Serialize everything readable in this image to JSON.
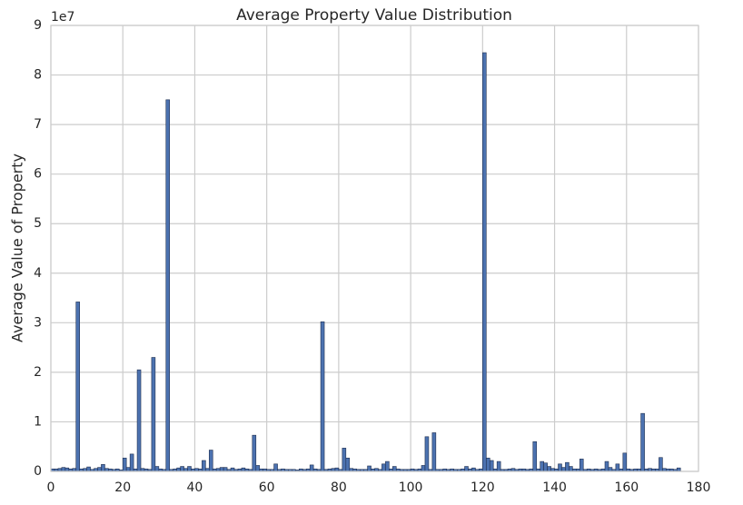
{
  "chart_data": {
    "type": "bar",
    "title": "Average Property Value Distribution",
    "ylabel": "Average Value of Property",
    "offset_label": "1e7",
    "color": "#4c72b0",
    "edgecolor": "#1f2f4f",
    "grid": true,
    "x": [
      0,
      1,
      2,
      3,
      4,
      5,
      6,
      7,
      8,
      9,
      10,
      11,
      12,
      13,
      14,
      15,
      16,
      17,
      18,
      19,
      20,
      21,
      22,
      23,
      24,
      25,
      26,
      27,
      28,
      29,
      30,
      31,
      32,
      33,
      34,
      35,
      36,
      37,
      38,
      39,
      40,
      41,
      42,
      43,
      44,
      45,
      46,
      47,
      48,
      49,
      50,
      51,
      52,
      53,
      54,
      55,
      56,
      57,
      58,
      59,
      60,
      61,
      62,
      63,
      64,
      65,
      66,
      67,
      68,
      69,
      70,
      71,
      72,
      73,
      74,
      75,
      76,
      77,
      78,
      79,
      80,
      81,
      82,
      83,
      84,
      85,
      86,
      87,
      88,
      89,
      90,
      91,
      92,
      93,
      94,
      95,
      96,
      97,
      98,
      99,
      100,
      101,
      102,
      103,
      104,
      105,
      106,
      107,
      108,
      109,
      110,
      111,
      112,
      113,
      114,
      115,
      116,
      117,
      118,
      119,
      120,
      121,
      122,
      123,
      124,
      125,
      126,
      127,
      128,
      129,
      130,
      131,
      132,
      133,
      134,
      135,
      136,
      137,
      138,
      139,
      140,
      141,
      142,
      143,
      144,
      145,
      146,
      147,
      148,
      149,
      150,
      151,
      152,
      153,
      154,
      155,
      156,
      157,
      158,
      159,
      160,
      161,
      162,
      163,
      164,
      165,
      166,
      167,
      168,
      169,
      170,
      171,
      172,
      173,
      174
    ],
    "values": [
      0.05,
      0.05,
      0.06,
      0.08,
      0.07,
      0.05,
      0.06,
      3.42,
      0.05,
      0.06,
      0.09,
      0.04,
      0.06,
      0.08,
      0.14,
      0.06,
      0.05,
      0.04,
      0.05,
      0.03,
      0.27,
      0.08,
      0.35,
      0.05,
      2.05,
      0.06,
      0.05,
      0.04,
      2.3,
      0.1,
      0.05,
      0.04,
      7.5,
      0.04,
      0.05,
      0.07,
      0.1,
      0.06,
      0.1,
      0.05,
      0.06,
      0.05,
      0.22,
      0.06,
      0.43,
      0.05,
      0.06,
      0.08,
      0.08,
      0.04,
      0.07,
      0.04,
      0.05,
      0.07,
      0.05,
      0.04,
      0.73,
      0.12,
      0.05,
      0.05,
      0.04,
      0.04,
      0.15,
      0.04,
      0.05,
      0.04,
      0.04,
      0.04,
      0.03,
      0.05,
      0.04,
      0.05,
      0.13,
      0.05,
      0.04,
      3.02,
      0.04,
      0.05,
      0.06,
      0.07,
      0.04,
      0.47,
      0.27,
      0.06,
      0.05,
      0.04,
      0.04,
      0.04,
      0.11,
      0.05,
      0.06,
      0.04,
      0.15,
      0.2,
      0.05,
      0.1,
      0.05,
      0.04,
      0.04,
      0.04,
      0.05,
      0.04,
      0.05,
      0.12,
      0.7,
      0.04,
      0.78,
      0.04,
      0.04,
      0.05,
      0.04,
      0.05,
      0.04,
      0.04,
      0.05,
      0.1,
      0.05,
      0.07,
      0.04,
      0.05,
      8.45,
      0.27,
      0.22,
      0.05,
      0.2,
      0.04,
      0.04,
      0.05,
      0.06,
      0.04,
      0.05,
      0.05,
      0.04,
      0.05,
      0.6,
      0.05,
      0.2,
      0.17,
      0.1,
      0.06,
      0.05,
      0.15,
      0.08,
      0.18,
      0.1,
      0.05,
      0.05,
      0.25,
      0.04,
      0.05,
      0.04,
      0.05,
      0.04,
      0.05,
      0.2,
      0.08,
      0.04,
      0.15,
      0.05,
      0.37,
      0.05,
      0.04,
      0.05,
      0.05,
      1.17,
      0.05,
      0.06,
      0.05,
      0.05,
      0.28,
      0.06,
      0.05,
      0.05,
      0.04,
      0.07
    ],
    "xlim": [
      0,
      180
    ],
    "xticks": [
      0,
      20,
      40,
      60,
      80,
      100,
      120,
      140,
      160,
      180
    ],
    "ylim": [
      0,
      9
    ],
    "yticks": [
      0,
      1,
      2,
      3,
      4,
      5,
      6,
      7,
      8,
      9
    ]
  }
}
